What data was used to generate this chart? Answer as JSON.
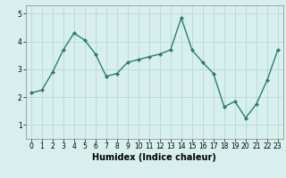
{
  "x": [
    0,
    1,
    2,
    3,
    4,
    5,
    6,
    7,
    8,
    9,
    10,
    11,
    12,
    13,
    14,
    15,
    16,
    17,
    18,
    19,
    20,
    21,
    22,
    23
  ],
  "y": [
    2.15,
    2.25,
    2.9,
    3.7,
    4.3,
    4.05,
    3.55,
    2.75,
    2.85,
    3.25,
    3.35,
    3.45,
    3.55,
    3.7,
    4.85,
    3.7,
    3.25,
    2.85,
    1.65,
    1.85,
    1.25,
    1.75,
    2.6,
    3.7
  ],
  "line_color": "#2d7d6e",
  "marker": "D",
  "marker_size": 2.0,
  "linewidth": 1.0,
  "background_color": "#d7f0ee",
  "grid_color": "#b8d8d4",
  "xlabel": "Humidex (Indice chaleur)",
  "ylim": [
    0.5,
    5.3
  ],
  "xlim": [
    -0.5,
    23.5
  ],
  "yticks": [
    1,
    2,
    3,
    4,
    5
  ],
  "xticks": [
    0,
    1,
    2,
    3,
    4,
    5,
    6,
    7,
    8,
    9,
    10,
    11,
    12,
    13,
    14,
    15,
    16,
    17,
    18,
    19,
    20,
    21,
    22,
    23
  ],
  "tick_fontsize": 5.5,
  "xlabel_fontsize": 7.0
}
